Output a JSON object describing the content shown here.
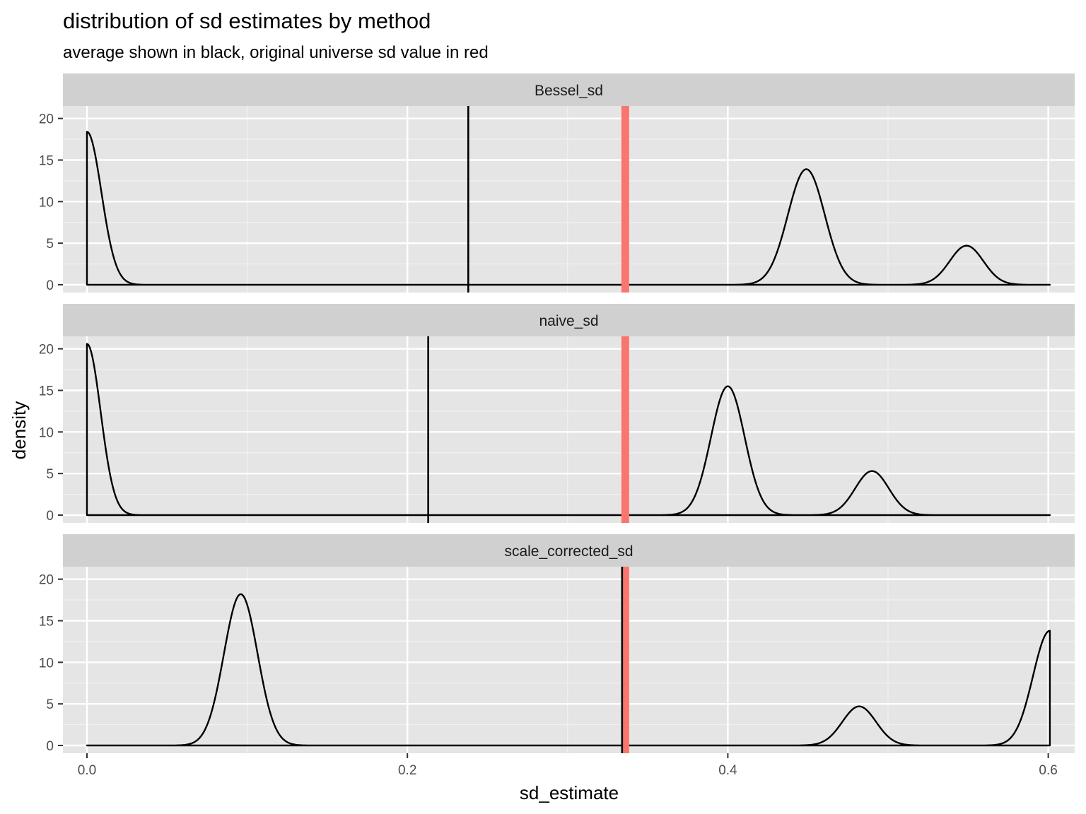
{
  "chart_data": {
    "type": "line",
    "title": "distribution of sd estimates by method",
    "subtitle": "average shown in black, original universe sd value in red",
    "xlabel": "sd_estimate",
    "ylabel": "density",
    "xlim": [
      -0.015,
      0.6165
    ],
    "ylim": [
      0,
      21.5
    ],
    "x_ticks": [
      0.0,
      0.2,
      0.4,
      0.6
    ],
    "x_tick_labels": [
      "0.0",
      "0.2",
      "0.4",
      "0.6"
    ],
    "y_ticks": [
      0,
      5,
      10,
      15,
      20
    ],
    "y_tick_labels": [
      "0",
      "5",
      "10",
      "15",
      "20"
    ],
    "grid": true,
    "reference_line_color": "#f8766d",
    "density_line_color": "#000000",
    "panel_background": "#e5e5e5",
    "strip_background": "#d0d0d0",
    "facets": [
      {
        "label": "Bessel_sd",
        "average": 0.238,
        "reference": 0.336,
        "x_range": [
          0.0,
          0.601
        ],
        "components": [
          {
            "center": 0.0,
            "peak": 18.4,
            "sd": 0.009
          },
          {
            "center": 0.449,
            "peak": 13.9,
            "sd": 0.0115
          },
          {
            "center": 0.549,
            "peak": 4.7,
            "sd": 0.0105
          }
        ]
      },
      {
        "label": "naive_sd",
        "average": 0.213,
        "reference": 0.336,
        "x_range": [
          0.0,
          0.601
        ],
        "components": [
          {
            "center": 0.0,
            "peak": 20.6,
            "sd": 0.0085
          },
          {
            "center": 0.4,
            "peak": 15.5,
            "sd": 0.0105
          },
          {
            "center": 0.49,
            "peak": 5.3,
            "sd": 0.0105
          }
        ]
      },
      {
        "label": "scale_corrected_sd",
        "average": 0.334,
        "reference": 0.336,
        "x_range": [
          0.0,
          0.601
        ],
        "components": [
          {
            "center": 0.096,
            "peak": 18.2,
            "sd": 0.0105
          },
          {
            "center": 0.482,
            "peak": 4.7,
            "sd": 0.0105
          },
          {
            "center": 0.601,
            "peak": 13.8,
            "sd": 0.0105
          }
        ]
      }
    ]
  }
}
